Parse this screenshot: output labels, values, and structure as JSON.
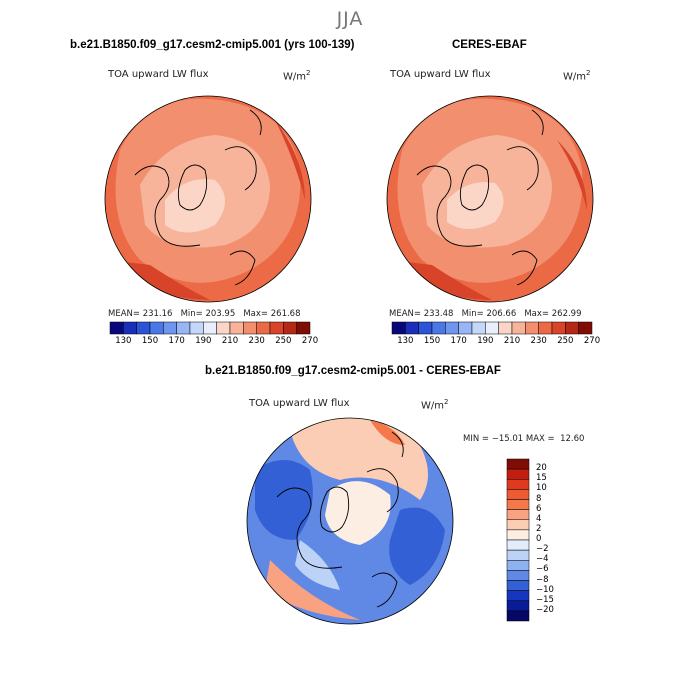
{
  "figure": {
    "season": "JJA"
  },
  "panels": [
    {
      "title": "b.e21.B1850.f09_g17.cesm2-cmip5.001 (yrs 100-139)",
      "variable": "TOA upward LW flux",
      "units": "W/m",
      "units_sup": "2",
      "stats": {
        "mean_label": "MEAN=",
        "mean": "231.16",
        "min_label": "Min=",
        "min": "203.95",
        "max_label": "Max=",
        "max": "261.68"
      }
    },
    {
      "title": "CERES-EBAF",
      "variable": "TOA upward LW flux",
      "units": "W/m",
      "units_sup": "2",
      "stats": {
        "mean_label": "MEAN=",
        "mean": "233.48",
        "min_label": "Min=",
        "min": "206.66",
        "max_label": "Max=",
        "max": "262.99"
      }
    },
    {
      "title": "b.e21.B1850.f09_g17.cesm2-cmip5.001 - CERES-EBAF",
      "variable": "TOA upward LW flux",
      "units": "W/m",
      "units_sup": "2",
      "stats": {
        "text": "MIN = −15.01 MAX =  12.60"
      }
    }
  ],
  "colorbar_abs": {
    "colors": [
      "#08087a",
      "#1a2fb8",
      "#2b55d6",
      "#4a78e6",
      "#6f95ef",
      "#98b6f5",
      "#c4d6fa",
      "#e8eefc",
      "#fbd6c6",
      "#f7b49a",
      "#f28f6e",
      "#eb6a45",
      "#d7442a",
      "#b52815",
      "#7f0d06"
    ],
    "labels": [
      "130",
      "150",
      "170",
      "190",
      "210",
      "230",
      "250",
      "270"
    ]
  },
  "colorbar_diff": {
    "colors": [
      "#7f0d06",
      "#c21d10",
      "#e03a1e",
      "#ee5a31",
      "#f4784a",
      "#f8a281",
      "#fbcdb5",
      "#fdeee4",
      "#e2ecfb",
      "#bcd2f6",
      "#8fb1ef",
      "#5f89e4",
      "#3460d6",
      "#1736bf",
      "#0a1b98",
      "#050866"
    ],
    "labels": [
      "20",
      "15",
      "10",
      "8",
      "6",
      "4",
      "2",
      "0",
      "−2",
      "−4",
      "−6",
      "−8",
      "−10",
      "−15",
      "−20"
    ]
  }
}
